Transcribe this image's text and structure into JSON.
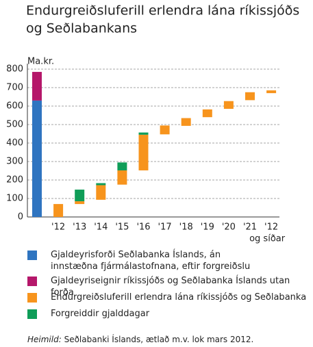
{
  "chart_data": {
    "type": "floating_bar",
    "title": [
      "Endurgreiðsluferill erlendra lána ríkissjóðs",
      "og Seðlabankans"
    ],
    "y_unit": "Ma.kr.",
    "categories": [
      null,
      "'12",
      "'13",
      "'14",
      "'15",
      "'16",
      "'17",
      "'18",
      "'19",
      "'20",
      "'21",
      "'12"
    ],
    "last_category_note": "og síðar",
    "bases": [
      0,
      0,
      70,
      93,
      175,
      252,
      447,
      493,
      540,
      585,
      632,
      670
    ],
    "series": [
      {
        "name": "Gjaldeyrisforði Seðlabanka Íslands, án innstæðna fjármálastofnana, eftir forgreiðslu",
        "color": "#2f74c0",
        "values": [
          630,
          null,
          null,
          null,
          null,
          null,
          null,
          null,
          null,
          null,
          null,
          null
        ]
      },
      {
        "name": "Gjaldeyriseignir ríkissjóðs og Seðlabanka Íslands utan forða",
        "color": "#b5176a",
        "values": [
          155,
          null,
          null,
          null,
          null,
          null,
          null,
          null,
          null,
          null,
          null,
          null
        ]
      },
      {
        "name": "Endurgreiðsluferill erlendra lána ríkissjóðs og Seðlabanka",
        "color": "#f7941d",
        "values": [
          null,
          70,
          15,
          79,
          77,
          193,
          48,
          42,
          42,
          42,
          43,
          15
        ]
      },
      {
        "name": "Forgreiddir gjalddagar",
        "color": "#0f9d58",
        "values": [
          null,
          null,
          63,
          11,
          43,
          12,
          null,
          null,
          null,
          null,
          null,
          null
        ]
      }
    ],
    "ylim": [
      0,
      800
    ],
    "yticks": [
      0,
      100,
      200,
      300,
      400,
      500,
      600,
      700,
      800
    ],
    "grid": true,
    "source_label": "Heimild:",
    "source_text": "Seðlabanki Íslands, ætlað m.v. lok mars 2012."
  }
}
